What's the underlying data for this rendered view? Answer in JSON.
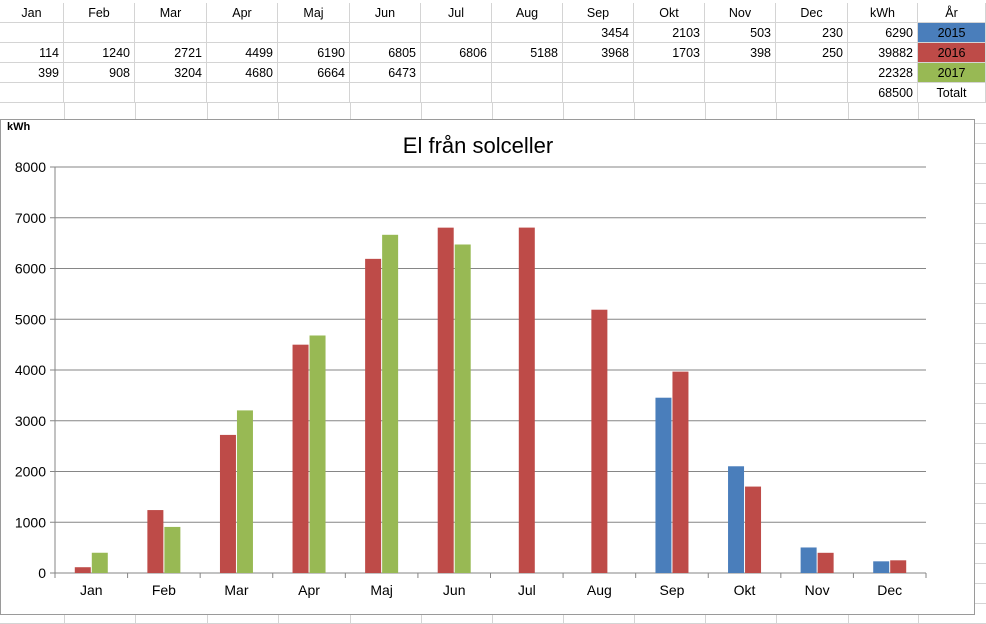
{
  "table": {
    "header": [
      "Jan",
      "Feb",
      "Mar",
      "Apr",
      "Maj",
      "Jun",
      "Jul",
      "Aug",
      "Sep",
      "Okt",
      "Nov",
      "Dec",
      "kWh",
      "År"
    ],
    "rows": [
      {
        "cells": [
          "",
          "",
          "",
          "",
          "",
          "",
          "",
          "",
          "3454",
          "2103",
          "503",
          "230",
          "6290",
          "2015"
        ],
        "color": "#4a7ebb"
      },
      {
        "cells": [
          "114",
          "1240",
          "2721",
          "4499",
          "6190",
          "6805",
          "6806",
          "5188",
          "3968",
          "1703",
          "398",
          "250",
          "39882",
          "2016"
        ],
        "color": "#be4b48"
      },
      {
        "cells": [
          "399",
          "908",
          "3204",
          "4680",
          "6664",
          "6473",
          "",
          "",
          "",
          "",
          "",
          "",
          "22328",
          "2017"
        ],
        "color": "#98b954"
      },
      {
        "cells": [
          "",
          "",
          "",
          "",
          "",
          "",
          "",
          "",
          "",
          "",
          "",
          "",
          "68500",
          "Totalt"
        ],
        "color": ""
      }
    ]
  },
  "chart_data": {
    "type": "bar",
    "title": "El från solceller",
    "ylabel": "kWh",
    "xlabel": "",
    "ylim": [
      0,
      8000
    ],
    "yticks": [
      0,
      1000,
      2000,
      3000,
      4000,
      5000,
      6000,
      7000,
      8000
    ],
    "grid": true,
    "legend": "none",
    "categories": [
      "Jan",
      "Feb",
      "Mar",
      "Apr",
      "Maj",
      "Jun",
      "Jul",
      "Aug",
      "Sep",
      "Okt",
      "Nov",
      "Dec"
    ],
    "series": [
      {
        "name": "2015",
        "color": "#4a7ebb",
        "values": [
          null,
          null,
          null,
          null,
          null,
          null,
          null,
          null,
          3454,
          2103,
          503,
          230
        ]
      },
      {
        "name": "2016",
        "color": "#be4b48",
        "values": [
          114,
          1240,
          2721,
          4499,
          6190,
          6805,
          6806,
          5188,
          3968,
          1703,
          398,
          250
        ]
      },
      {
        "name": "2017",
        "color": "#98b954",
        "values": [
          399,
          908,
          3204,
          4680,
          6664,
          6473,
          null,
          null,
          null,
          null,
          null,
          null
        ]
      }
    ]
  }
}
